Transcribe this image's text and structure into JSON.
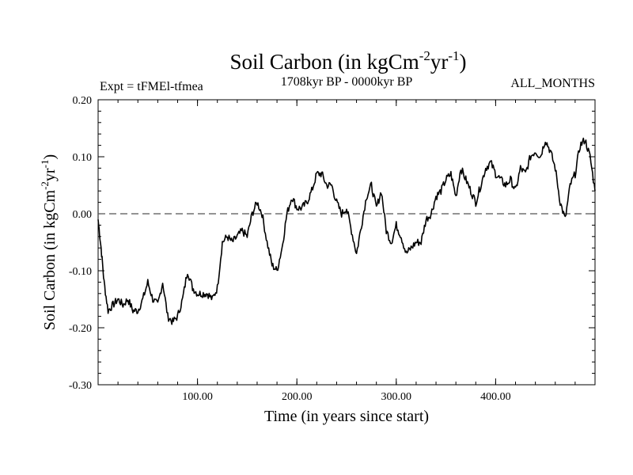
{
  "chart_data": {
    "type": "line",
    "title": "Soil Carbon (in kgCm",
    "title_sup1": "-2",
    "title_mid": "yr",
    "title_sup2": "-1",
    "title_end": ")",
    "subtitle_left": "Expt = tFMEl-tfmea",
    "subtitle_center": "1708kyr BP - 0000kyr BP",
    "subtitle_right": "ALL_MONTHS",
    "xlabel": "Time (in years since start)",
    "ylabel": "Soil Carbon (in kgCm",
    "ylabel_sup1": "-2",
    "ylabel_mid": "yr",
    "ylabel_sup2": "-1",
    "ylabel_end": ")",
    "xlim": [
      0,
      500
    ],
    "ylim": [
      -0.3,
      0.2
    ],
    "x_ticks": [
      100,
      200,
      300,
      400
    ],
    "x_tick_labels": [
      "100.00",
      "200.00",
      "300.00",
      "400.00"
    ],
    "y_ticks": [
      0.2,
      0.1,
      0.0,
      -0.1,
      -0.2,
      -0.3
    ],
    "y_tick_labels": [
      "0.20",
      "0.10",
      "0.00",
      "-0.10",
      "-0.20",
      "-0.30"
    ],
    "reference_line": 0.0,
    "grid": false,
    "series": [
      {
        "name": "Soil Carbon",
        "x": [
          0,
          3,
          6,
          10,
          15,
          20,
          25,
          30,
          35,
          40,
          45,
          50,
          55,
          60,
          65,
          70,
          75,
          80,
          85,
          90,
          95,
          100,
          105,
          110,
          115,
          120,
          125,
          130,
          135,
          140,
          145,
          150,
          155,
          160,
          165,
          170,
          175,
          180,
          185,
          190,
          195,
          200,
          205,
          210,
          215,
          220,
          225,
          230,
          235,
          240,
          245,
          250,
          255,
          260,
          265,
          270,
          275,
          280,
          285,
          290,
          295,
          300,
          305,
          310,
          315,
          320,
          325,
          330,
          335,
          340,
          345,
          350,
          355,
          360,
          365,
          370,
          375,
          380,
          385,
          390,
          395,
          400,
          405,
          410,
          415,
          420,
          425,
          430,
          435,
          440,
          445,
          450,
          455,
          460,
          465,
          470,
          475,
          480,
          485,
          490,
          495,
          500
        ],
        "values": [
          -0.01,
          -0.06,
          -0.12,
          -0.17,
          -0.16,
          -0.15,
          -0.16,
          -0.15,
          -0.17,
          -0.17,
          -0.15,
          -0.12,
          -0.15,
          -0.16,
          -0.12,
          -0.18,
          -0.19,
          -0.18,
          -0.15,
          -0.1,
          -0.13,
          -0.14,
          -0.14,
          -0.14,
          -0.15,
          -0.13,
          -0.05,
          -0.04,
          -0.05,
          -0.04,
          -0.03,
          -0.04,
          0.0,
          0.02,
          0.0,
          -0.05,
          -0.09,
          -0.1,
          -0.06,
          0.0,
          0.03,
          0.01,
          0.01,
          0.02,
          0.04,
          0.07,
          0.07,
          0.05,
          0.05,
          0.02,
          0.0,
          0.01,
          -0.03,
          -0.07,
          -0.02,
          0.03,
          0.05,
          0.01,
          0.04,
          -0.03,
          -0.05,
          -0.02,
          -0.04,
          -0.07,
          -0.06,
          -0.05,
          -0.05,
          -0.01,
          0.0,
          0.03,
          0.04,
          0.06,
          0.07,
          0.03,
          0.08,
          0.06,
          0.04,
          0.02,
          0.05,
          0.08,
          0.09,
          0.07,
          0.06,
          0.05,
          0.06,
          0.04,
          0.08,
          0.07,
          0.1,
          0.11,
          0.1,
          0.13,
          0.11,
          0.08,
          0.02,
          -0.01,
          0.05,
          0.07,
          0.12,
          0.13,
          0.1,
          0.04
        ]
      }
    ]
  }
}
